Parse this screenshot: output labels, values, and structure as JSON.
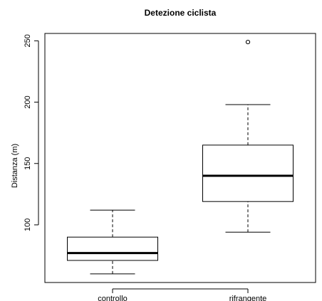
{
  "chart_data": {
    "type": "boxplot",
    "title": "Detezione ciclista",
    "xlabel": "",
    "ylabel": "Distanza (m)",
    "ylim": [
      53,
      256
    ],
    "yticks": [
      100,
      150,
      200,
      250
    ],
    "categories": [
      "controllo",
      "rifrangente"
    ],
    "boxes": [
      {
        "category": "controllo",
        "whisker_low": 60,
        "q1": 71,
        "median": 77,
        "q3": 90,
        "whisker_high": 112,
        "outliers": []
      },
      {
        "category": "rifrangente",
        "whisker_low": 94,
        "q1": 119,
        "median": 140,
        "q3": 165,
        "whisker_high": 198,
        "outliers": [
          249
        ]
      }
    ],
    "grid": false,
    "legend": "none",
    "colors": {
      "box_fill": "#ffffff",
      "stroke": "#000000",
      "background": "#ffffff"
    }
  }
}
